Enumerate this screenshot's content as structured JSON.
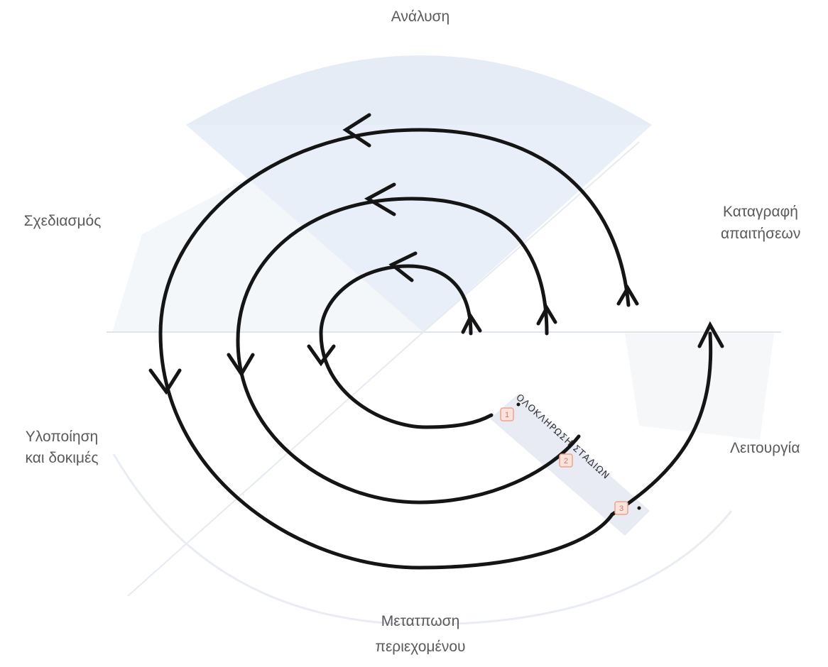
{
  "phases": {
    "analysis": "Ανάλυση",
    "requirements_line1": "Καταγραφή",
    "requirements_line2": "απαιτήσεων",
    "operation": "Λειτουργία",
    "content_line1": "Μετατπωση",
    "content_line2": "περιεχομένου",
    "implementation_line1": "Υλοποίηση",
    "implementation_line2": "και δοκιμές",
    "design": "Σχεδιασμός"
  },
  "completion": {
    "label": "ΟΛΟΚΛΗΡΩΣΗ ΣΤΑΔΙΩΝ",
    "markers": [
      "1",
      "2",
      "3"
    ]
  },
  "colors": {
    "spiral": "#151515",
    "shading": "#dde6f3",
    "guides": "#dfe5ee",
    "band": "#e6e8f3",
    "marker": "#e9a58f"
  }
}
